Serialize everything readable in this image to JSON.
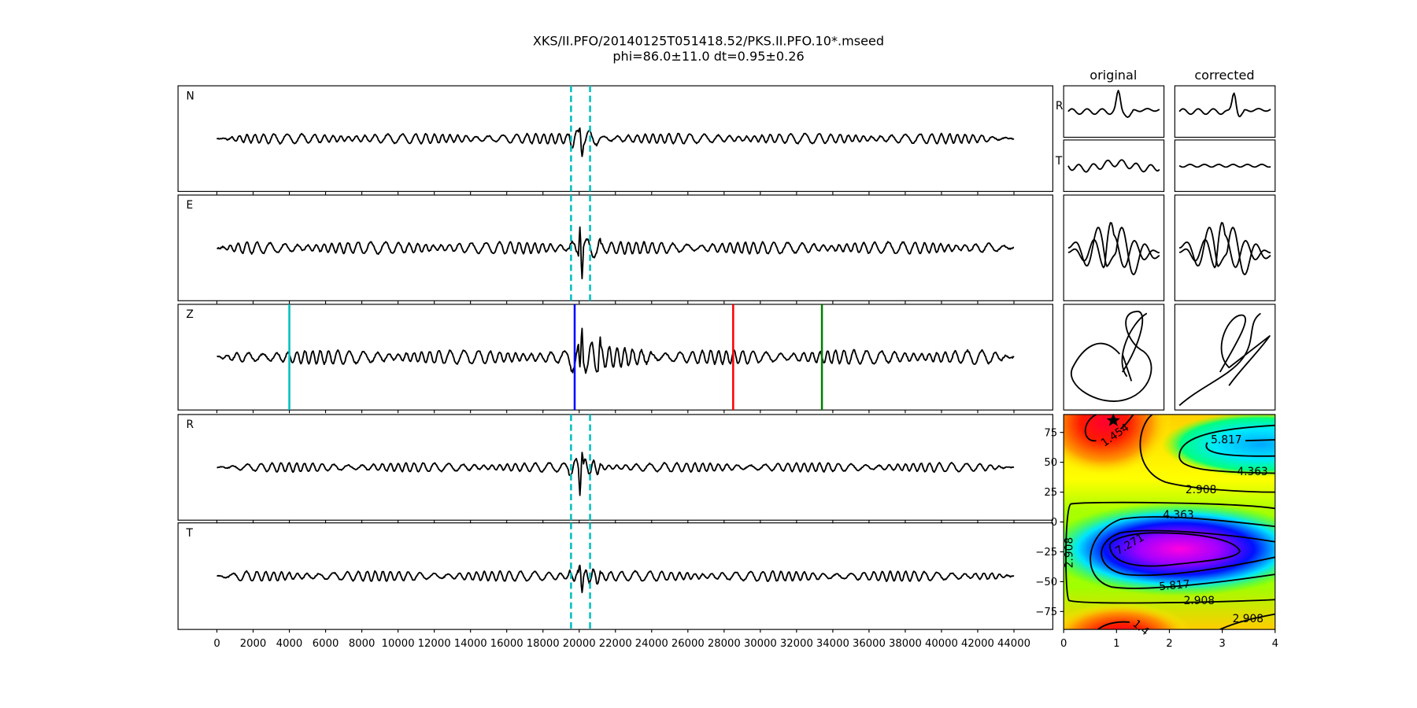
{
  "title": {
    "line1": "XKS/II.PFO/20140125T051418.52/PKS.II.PFO.10*.mseed",
    "line2": "phi=86.0±11.0 dt=0.95±0.26"
  },
  "chart_data": {
    "type": "line",
    "seismograms": {
      "panels": [
        "N",
        "E",
        "Z",
        "R",
        "T"
      ],
      "x_ticks": [
        "0",
        "2000",
        "4000",
        "6000",
        "8000",
        "10000",
        "12000",
        "14000",
        "16000",
        "18000",
        "20000",
        "22000",
        "24000",
        "26000",
        "28000",
        "30000",
        "32000",
        "34000",
        "36000",
        "38000",
        "40000",
        "42000",
        "44000"
      ],
      "xlim": [
        -2000,
        46000
      ],
      "window_markers": {
        "values": [
          19550,
          20600
        ],
        "color": "#00bfbf",
        "style": "dashed",
        "panels": [
          "N",
          "E",
          "R",
          "T"
        ]
      },
      "phase_markers": [
        {
          "value": 4000,
          "color": "#00bfbf"
        },
        {
          "value": 19750,
          "color": "#0000ff"
        },
        {
          "value": 28500,
          "color": "#ff0000"
        },
        {
          "value": 33400,
          "color": "#008000"
        }
      ],
      "trace_color": "#000000"
    },
    "comparison": {
      "columns": [
        "original",
        "corrected"
      ],
      "row_labels": [
        "R",
        "T"
      ],
      "overlay_colors": [
        "#ff0000",
        "#000000"
      ]
    },
    "error_surface": {
      "type": "heatmap",
      "xlim": [
        0,
        4
      ],
      "ylim": [
        -90,
        90
      ],
      "x_ticks": [
        "0",
        "1",
        "2",
        "3",
        "4"
      ],
      "y_ticks": [
        "75",
        "50",
        "25",
        "0",
        "−25",
        "−50",
        "−75"
      ],
      "contour_labels": [
        "1.454",
        "2.908",
        "4.363",
        "5.817",
        "7.271",
        "5.817",
        "4.363",
        "2.908",
        "2.908",
        "2.908",
        "1.4"
      ],
      "best_fit": {
        "dt": 0.95,
        "phi": 86.0
      },
      "colormap": "gist_rainbow"
    }
  }
}
